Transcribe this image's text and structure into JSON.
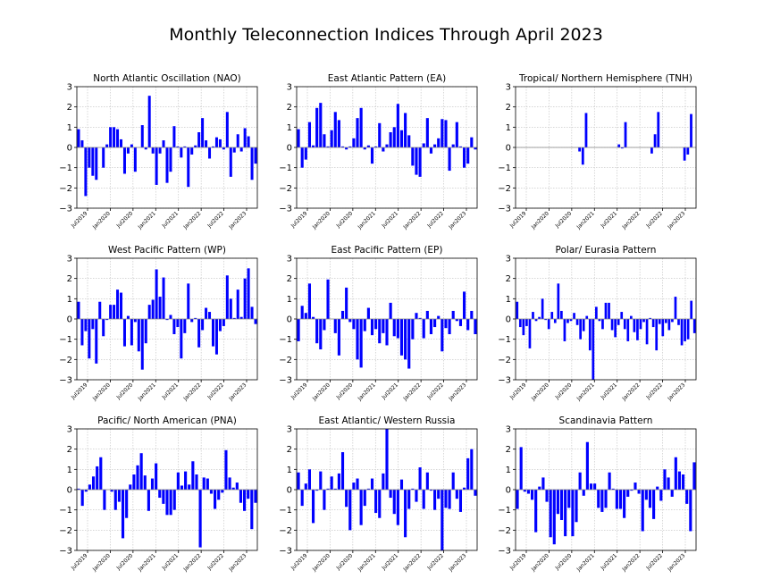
{
  "title": "Monthly Teleconnection Indices Through April 2023",
  "colors": {
    "bar": "#0000ff",
    "zero_line": "#808080",
    "grid": "#bfbfbf",
    "frame": "#000000"
  },
  "x_tick_labels": [
    "Jul2019",
    "Jan2020",
    "Jul2020",
    "Jan2021",
    "Jul2021",
    "Jan2022",
    "Jul2022",
    "Jan2023"
  ],
  "chart_data": [
    {
      "type": "bar",
      "title": "North Atlantic Oscillation (NAO)",
      "ylim": [
        -3,
        3
      ],
      "yticks": [
        -3,
        -2,
        -1,
        0,
        1,
        2,
        3
      ],
      "grid": true,
      "values": [
        0.9,
        0.35,
        -2.4,
        -1.0,
        -1.4,
        -1.6,
        0,
        -1.0,
        0.15,
        1.0,
        1.0,
        0.9,
        0.4,
        -1.3,
        -0.3,
        0.15,
        -1.2,
        0,
        1.1,
        -0.1,
        2.55,
        -0.3,
        -1.85,
        -0.3,
        0.35,
        -1.75,
        -1.2,
        1.05,
        0.05,
        -0.5,
        0.05,
        -1.95,
        -0.35,
        0.1,
        0.75,
        1.45,
        0.35,
        -0.55,
        0.05,
        0.5,
        0.4,
        -0.1,
        1.75,
        -1.45,
        -0.25,
        0.65,
        -0.2,
        0.95,
        0.55,
        -1.6,
        -0.8
      ]
    },
    {
      "type": "bar",
      "title": "East Atlantic Pattern (EA)",
      "ylim": [
        -3,
        3
      ],
      "yticks": [
        -3,
        -2,
        -1,
        0,
        1,
        2,
        3
      ],
      "grid": true,
      "values": [
        0.9,
        -1.0,
        -0.6,
        1.25,
        0.1,
        1.95,
        2.2,
        0.65,
        0.05,
        0.85,
        1.75,
        1.35,
        0.05,
        -0.1,
        0.05,
        0.45,
        1.45,
        1.95,
        -0.1,
        0.1,
        -0.8,
        0.05,
        1.2,
        -0.2,
        0.15,
        0.75,
        1.0,
        2.15,
        0.85,
        1.7,
        0.6,
        -0.9,
        -1.35,
        -1.45,
        0.2,
        1.45,
        -0.3,
        0.15,
        0.45,
        1.4,
        1.35,
        -1.15,
        0.15,
        1.25,
        0.05,
        -1.0,
        -0.8,
        0.5,
        -0.1
      ]
    },
    {
      "type": "bar",
      "title": "Tropical/ Northern Hemisphere (TNH)",
      "ylim": [
        -3,
        3
      ],
      "yticks": [
        -3,
        -2,
        -1,
        0,
        1,
        2,
        3
      ],
      "grid": true,
      "values": [
        0,
        0,
        0,
        0,
        0,
        0,
        0,
        0,
        0,
        0,
        0,
        0,
        0,
        0,
        0,
        0,
        0,
        0,
        0,
        -0.2,
        -0.85,
        1.7,
        0,
        0,
        0,
        0,
        0,
        0,
        0,
        0,
        0,
        0.15,
        -0.05,
        1.25,
        0,
        0,
        0,
        0,
        0,
        0,
        0,
        -0.3,
        0.65,
        1.75,
        0,
        0,
        0,
        0,
        0,
        0,
        0,
        -0.65,
        -0.35,
        1.65,
        0
      ]
    },
    {
      "type": "bar",
      "title": "West Pacific Pattern (WP)",
      "ylim": [
        -3,
        3
      ],
      "yticks": [
        -3,
        -2,
        -1,
        0,
        1,
        2,
        3
      ],
      "grid": true,
      "values": [
        0.85,
        -1.3,
        -0.6,
        -1.95,
        -0.5,
        -2.2,
        0.85,
        -0.85,
        -0.05,
        0.7,
        0.7,
        1.45,
        1.3,
        -1.35,
        0.15,
        -1.3,
        -0.15,
        -1.6,
        -2.5,
        -1.2,
        0.7,
        0.95,
        2.45,
        1.1,
        2.05,
        -0.05,
        0.2,
        -0.75,
        -0.4,
        -1.95,
        -0.7,
        1.75,
        -0.15,
        0.05,
        -1.4,
        -0.55,
        0.55,
        0.35,
        -1.35,
        -1.75,
        -0.6,
        -0.35,
        2.15,
        1.0,
        0.05,
        1.45,
        0.1,
        2.0,
        2.5,
        0.6,
        -0.25
      ]
    },
    {
      "type": "bar",
      "title": "East Pacific Pattern (EP)",
      "ylim": [
        -3,
        3
      ],
      "yticks": [
        -3,
        -2,
        -1,
        0,
        1,
        2,
        3
      ],
      "grid": true,
      "values": [
        -1.1,
        0.65,
        0.3,
        1.75,
        0.1,
        -1.2,
        -1.5,
        -0.55,
        1.95,
        0,
        -0.7,
        -1.8,
        0.4,
        1.55,
        -0.15,
        -0.5,
        -2.0,
        -2.4,
        -0.6,
        0.55,
        -0.8,
        -0.5,
        -1.2,
        -0.7,
        -1.3,
        0.8,
        -0.85,
        -0.95,
        -1.8,
        -2.0,
        -2.45,
        -1.0,
        0.3,
        0.05,
        -0.95,
        0.4,
        -0.75,
        -0.4,
        0.15,
        -1.6,
        -0.45,
        -0.75,
        0.4,
        -0.1,
        -0.35,
        1.35,
        -0.55,
        0.4,
        -0.75
      ]
    },
    {
      "type": "bar",
      "title": "Polar/ Eurasia Pattern",
      "ylim": [
        -3,
        3
      ],
      "yticks": [
        -3,
        -2,
        -1,
        0,
        1,
        2,
        3
      ],
      "grid": true,
      "values": [
        0.85,
        -0.4,
        -0.8,
        -0.35,
        -1.45,
        0.35,
        -0.1,
        0.1,
        1.0,
        -0.05,
        -0.5,
        0.35,
        -0.2,
        1.75,
        0.4,
        -1.1,
        -0.2,
        -0.1,
        0.3,
        -0.3,
        -1.0,
        -0.6,
        0.15,
        -1.55,
        -3.0,
        0.6,
        -0.1,
        -0.5,
        0.8,
        0.8,
        -0.55,
        -0.9,
        -0.3,
        0.35,
        -0.5,
        -1.1,
        0.15,
        -0.65,
        -1.05,
        -0.5,
        -0.15,
        -1.25,
        0.05,
        -0.4,
        -1.55,
        -0.25,
        -0.85,
        -0.2,
        -0.55,
        -0.15,
        1.1,
        -0.3,
        -1.3,
        -1.1,
        -1.0,
        0.9,
        -0.7
      ]
    },
    {
      "type": "bar",
      "title": "Pacific/ North American (PNA)",
      "ylim": [
        -3,
        3
      ],
      "yticks": [
        -3,
        -2,
        -1,
        0,
        1,
        2,
        3
      ],
      "grid": true,
      "values": [
        0.05,
        -0.8,
        -0.1,
        0.25,
        0.65,
        1.15,
        1.6,
        -1.0,
        0,
        -0.1,
        -1.0,
        -0.6,
        -2.4,
        -1.4,
        0.25,
        0.75,
        1.2,
        1.8,
        0.7,
        -1.05,
        0.55,
        1.3,
        -0.4,
        -0.7,
        -1.25,
        -1.25,
        -1.0,
        0.85,
        0.2,
        0.9,
        0.25,
        1.4,
        0.75,
        -2.85,
        0.6,
        0.55,
        -0.2,
        -0.95,
        -0.5,
        -0.15,
        1.95,
        0.6,
        0.1,
        0.35,
        -0.65,
        -1.05,
        -0.45,
        -1.95,
        -0.65
      ]
    },
    {
      "type": "bar",
      "title": "East Atlantic/ Western Russia",
      "ylim": [
        -3,
        3
      ],
      "yticks": [
        -3,
        -2,
        -1,
        0,
        1,
        2,
        3
      ],
      "grid": true,
      "values": [
        0.85,
        -0.8,
        0.3,
        1.0,
        -1.65,
        -0.05,
        0.9,
        -1.0,
        0.05,
        0.65,
        0.05,
        0.8,
        1.85,
        -0.85,
        -2.0,
        0.35,
        0.55,
        -1.75,
        -0.8,
        0.05,
        0.55,
        -1.15,
        -1.4,
        0.8,
        3.0,
        -0.4,
        -1.2,
        -1.75,
        0.5,
        -2.35,
        -0.95,
        0.05,
        -0.6,
        1.1,
        -0.95,
        0.85,
        -0.05,
        -1.0,
        -0.45,
        -3.0,
        -0.9,
        -0.95,
        0.85,
        -0.45,
        -1.1,
        0.1,
        1.55,
        2.0,
        -0.3
      ]
    },
    {
      "type": "bar",
      "title": "Scandinavia Pattern",
      "ylim": [
        -3,
        3
      ],
      "yticks": [
        -3,
        -2,
        -1,
        0,
        1,
        2,
        3
      ],
      "grid": true,
      "values": [
        -0.95,
        2.1,
        -0.1,
        -0.2,
        -0.5,
        -2.1,
        0.15,
        0.6,
        -0.6,
        -2.35,
        -2.7,
        -1.2,
        -1.5,
        -2.3,
        -0.9,
        -2.3,
        -1.6,
        0.85,
        -0.3,
        2.35,
        0.3,
        0.3,
        -0.9,
        -1.1,
        -0.9,
        0.85,
        0.05,
        -0.95,
        -0.95,
        -1.4,
        -0.35,
        -0.05,
        0.35,
        -0.2,
        -2.05,
        -0.5,
        -0.9,
        -1.45,
        0.15,
        -0.55,
        1.0,
        0.6,
        -0.35,
        1.6,
        0.9,
        0.75,
        -0.7,
        -2.05,
        1.35
      ]
    }
  ]
}
